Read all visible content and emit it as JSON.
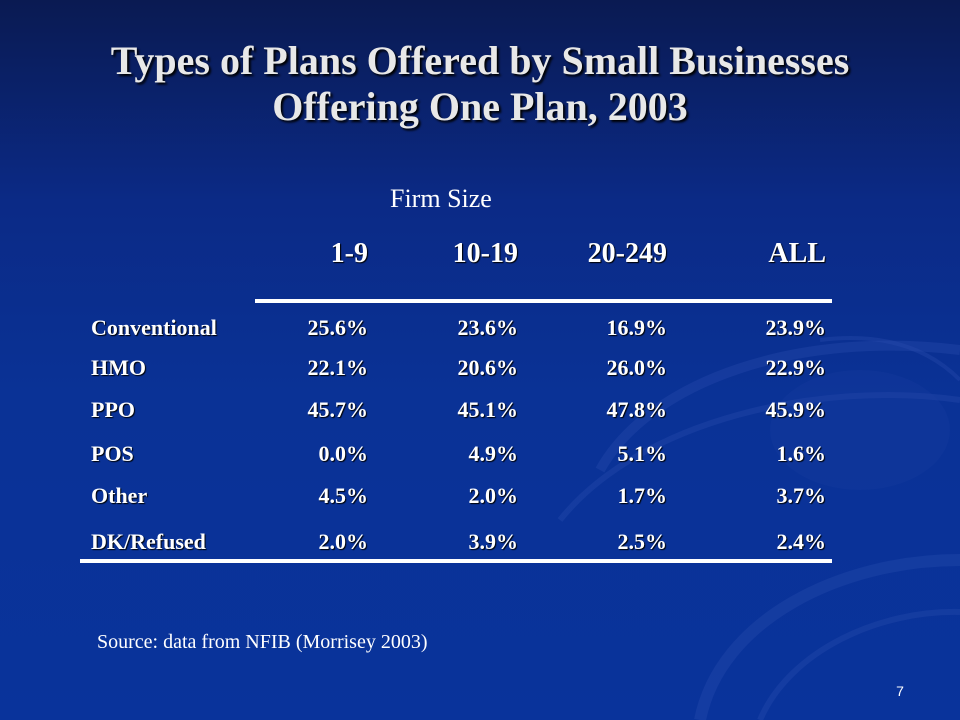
{
  "title_line1": "Types of Plans Offered by Small Businesses",
  "title_line2": "Offering One Plan, 2003",
  "table": {
    "group_header": "Firm Size",
    "columns": [
      "1-9",
      "10-19",
      "20-249",
      "ALL"
    ],
    "rows": [
      {
        "label": "Conventional",
        "values": [
          "25.6%",
          "23.6%",
          "16.9%",
          "23.9%"
        ]
      },
      {
        "label": "HMO",
        "values": [
          "22.1%",
          "20.6%",
          "26.0%",
          "22.9%"
        ]
      },
      {
        "label": "PPO",
        "values": [
          "45.7%",
          "45.1%",
          "47.8%",
          "45.9%"
        ]
      },
      {
        "label": "POS",
        "values": [
          "0.0%",
          "4.9%",
          "5.1%",
          "1.6%"
        ]
      },
      {
        "label": "Other",
        "values": [
          "4.5%",
          "2.0%",
          "1.7%",
          "3.7%"
        ]
      },
      {
        "label": "DK/Refused",
        "values": [
          "2.0%",
          "3.9%",
          "2.5%",
          "2.4%"
        ]
      }
    ]
  },
  "source": "Source: data from NFIB (Morrisey 2003)",
  "slide_number": "7",
  "colors": {
    "background": "#0a3296",
    "text": "#ffffff",
    "title": "#e8e8e8"
  }
}
